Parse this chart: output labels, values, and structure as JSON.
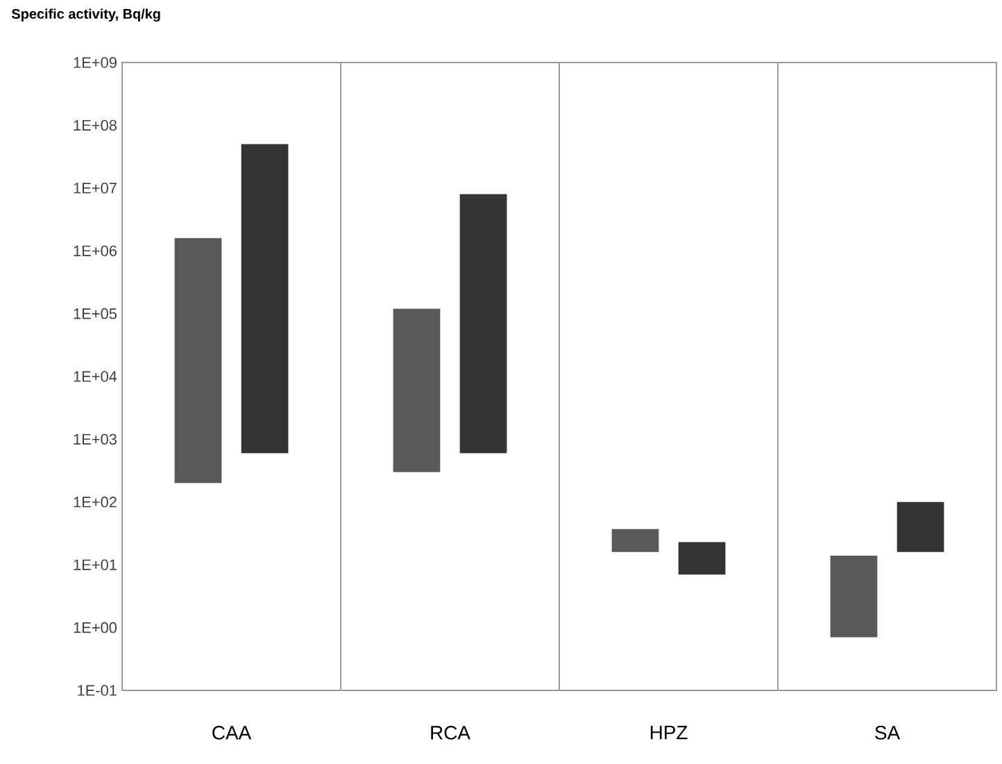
{
  "chart_data": {
    "type": "bar",
    "ylabel": "Specific activity, Bq/kg",
    "categories": [
      "CAA",
      "RCA",
      "HPZ",
      "SA"
    ],
    "series": [
      {
        "color": "#595959",
        "base": [
          200,
          300,
          16,
          0.7
        ],
        "values": [
          1599800,
          119700,
          21,
          13.3
        ]
      },
      {
        "color": "#333333",
        "base": [
          600,
          600,
          7,
          16
        ],
        "values": [
          49999400,
          7999400,
          16,
          84
        ]
      }
    ],
    "log": "y",
    "ylim": [
      0.1,
      1000000000
    ],
    "yticks": [
      {
        "value": 0.1,
        "label": "1E-01"
      },
      {
        "value": 1,
        "label": "1E+00"
      },
      {
        "value": 10,
        "label": "1E+01"
      },
      {
        "value": 100,
        "label": "1E+02"
      },
      {
        "value": 1000,
        "label": "1E+03"
      },
      {
        "value": 10000,
        "label": "1E+04"
      },
      {
        "value": 100000,
        "label": "1E+05"
      },
      {
        "value": 1000000,
        "label": "1E+06"
      },
      {
        "value": 10000000,
        "label": "1E+07"
      },
      {
        "value": 100000000,
        "label": "1E+08"
      },
      {
        "value": 1000000000,
        "label": "1E+09"
      }
    ],
    "grid": "x"
  }
}
